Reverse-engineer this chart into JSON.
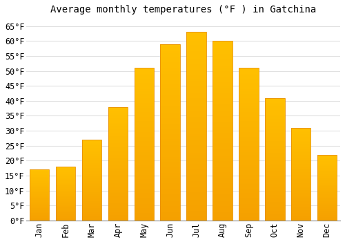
{
  "title": "Average monthly temperatures (°F ) in Gatchina",
  "months": [
    "Jan",
    "Feb",
    "Mar",
    "Apr",
    "May",
    "Jun",
    "Jul",
    "Aug",
    "Sep",
    "Oct",
    "Nov",
    "Dec"
  ],
  "values": [
    17,
    18,
    27,
    38,
    51,
    59,
    63,
    60,
    51,
    41,
    31,
    22
  ],
  "bar_color_top": "#FFC020",
  "bar_color_bottom": "#F5A000",
  "bar_edge_color": "#E89000",
  "background_color": "#FFFFFF",
  "plot_bg_color": "#FFFFFF",
  "grid_color": "#E0E0E0",
  "ylim": [
    0,
    67
  ],
  "yticks": [
    0,
    5,
    10,
    15,
    20,
    25,
    30,
    35,
    40,
    45,
    50,
    55,
    60,
    65
  ],
  "title_fontsize": 10,
  "tick_fontsize": 8.5,
  "font_family": "monospace"
}
